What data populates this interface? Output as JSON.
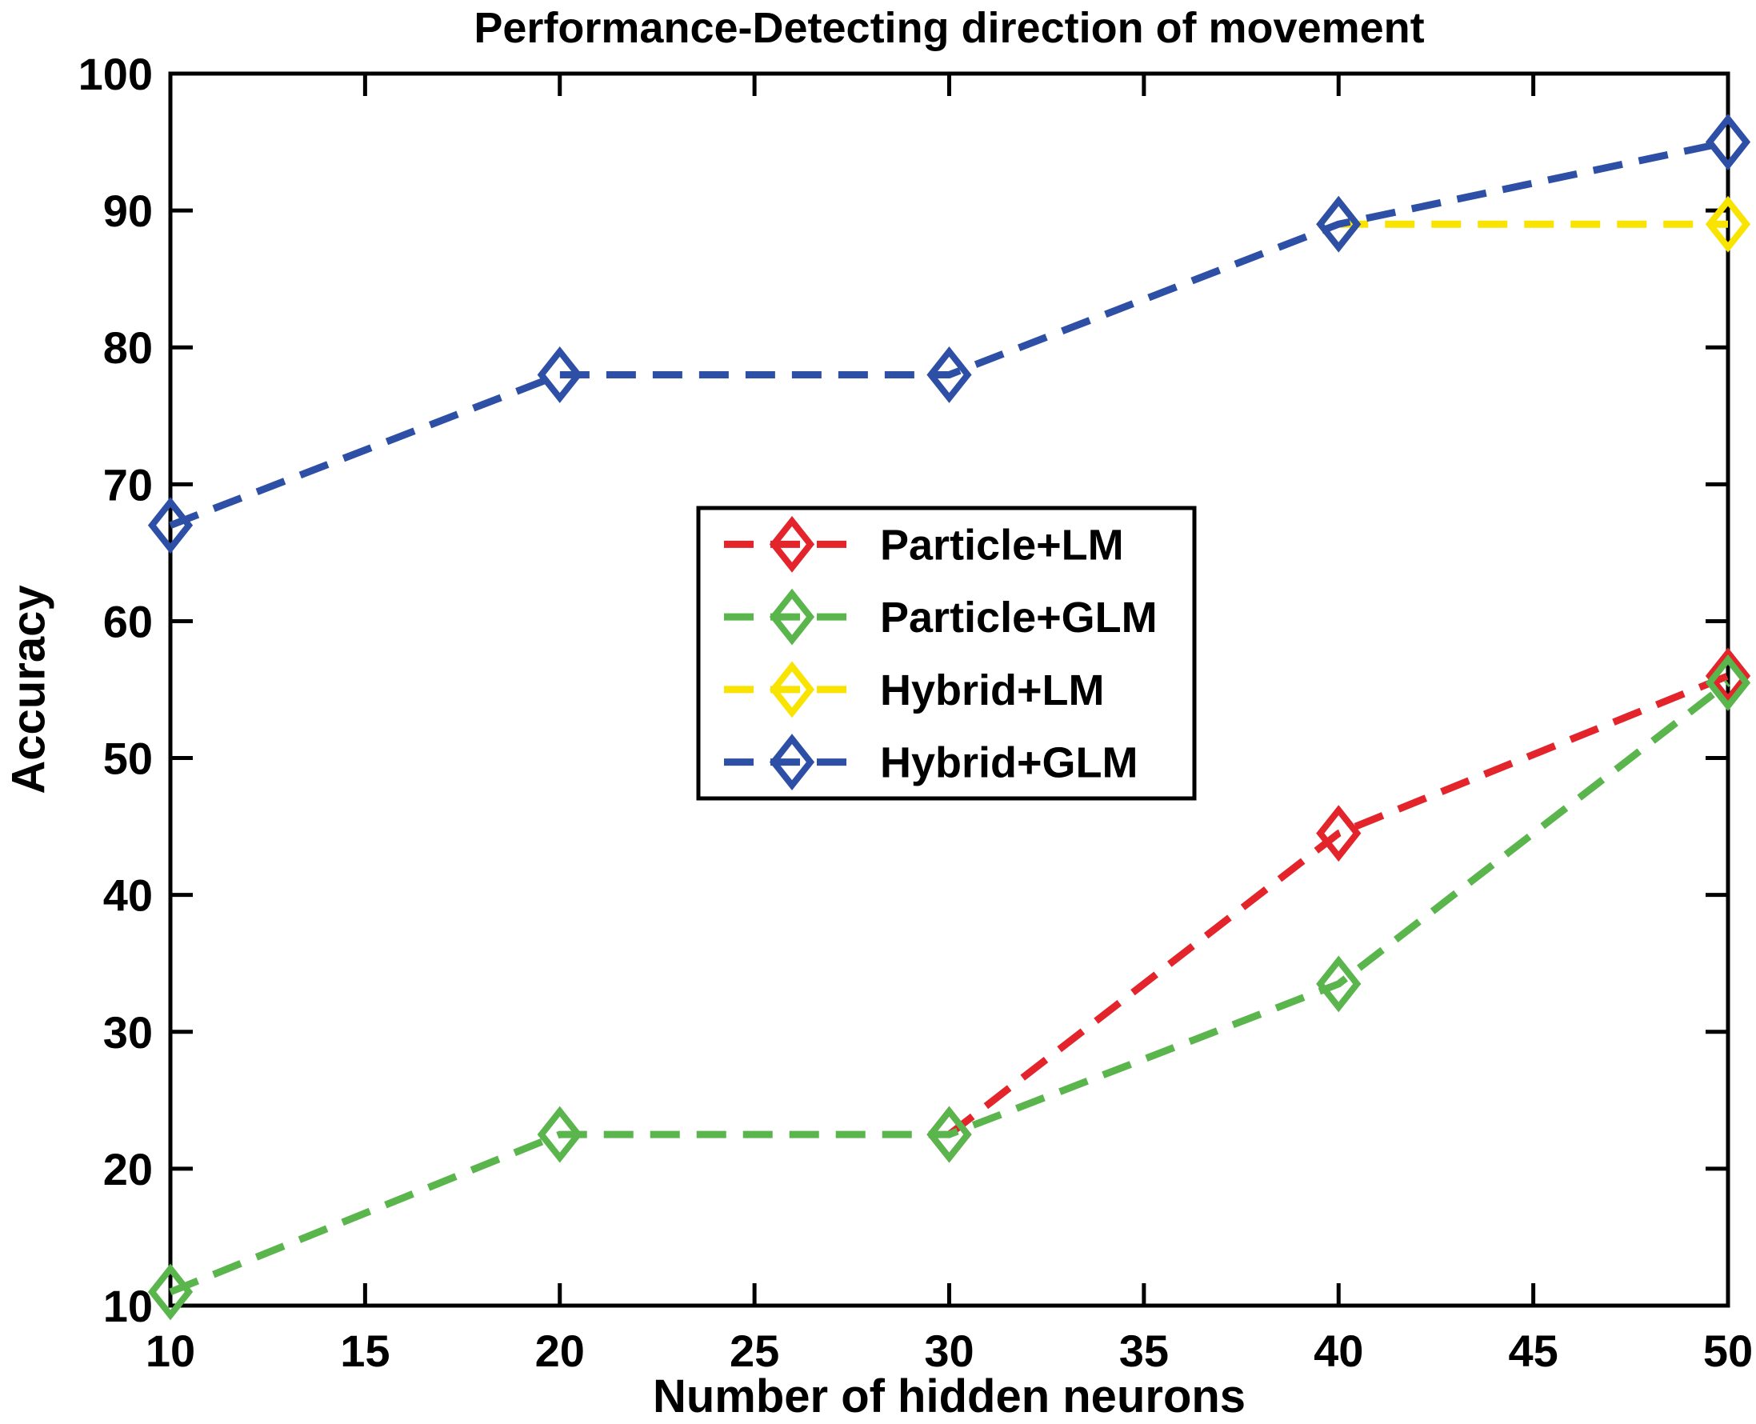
{
  "figure": {
    "background_color": "#ffffff",
    "axis_color": "#000000"
  },
  "chart_data": {
    "type": "line",
    "title": "Performance-Detecting direction of movement",
    "xlabel": "Number of hidden neurons",
    "ylabel": "Accuracy",
    "xlim": [
      10,
      50
    ],
    "ylim": [
      10,
      100
    ],
    "xticks": [
      10,
      15,
      20,
      25,
      30,
      35,
      40,
      45,
      50
    ],
    "yticks": [
      10,
      20,
      30,
      40,
      50,
      60,
      70,
      80,
      90,
      100
    ],
    "grid": false,
    "line_style": "dashed",
    "marker": "diamond",
    "legend_position": "center",
    "legend_entries": [
      "Particle+LM",
      "Particle+GLM",
      "Hybrid+LM",
      "Hybrid+GLM"
    ],
    "series": [
      {
        "name": "Particle+LM",
        "color": "#e3242b",
        "x": [
          30,
          40,
          50
        ],
        "y": [
          22.5,
          44.5,
          56
        ]
      },
      {
        "name": "Particle+GLM",
        "color": "#5ab54d",
        "x": [
          10,
          20,
          30,
          40,
          50
        ],
        "y": [
          11,
          22.5,
          22.5,
          33.5,
          55.5
        ]
      },
      {
        "name": "Hybrid+LM",
        "color": "#f8e400",
        "x": [
          40,
          50
        ],
        "y": [
          89,
          89
        ]
      },
      {
        "name": "Hybrid+GLM",
        "color": "#2d4fa5",
        "x": [
          10,
          20,
          30,
          40,
          50
        ],
        "y": [
          67,
          78,
          78,
          89,
          95
        ]
      }
    ]
  }
}
